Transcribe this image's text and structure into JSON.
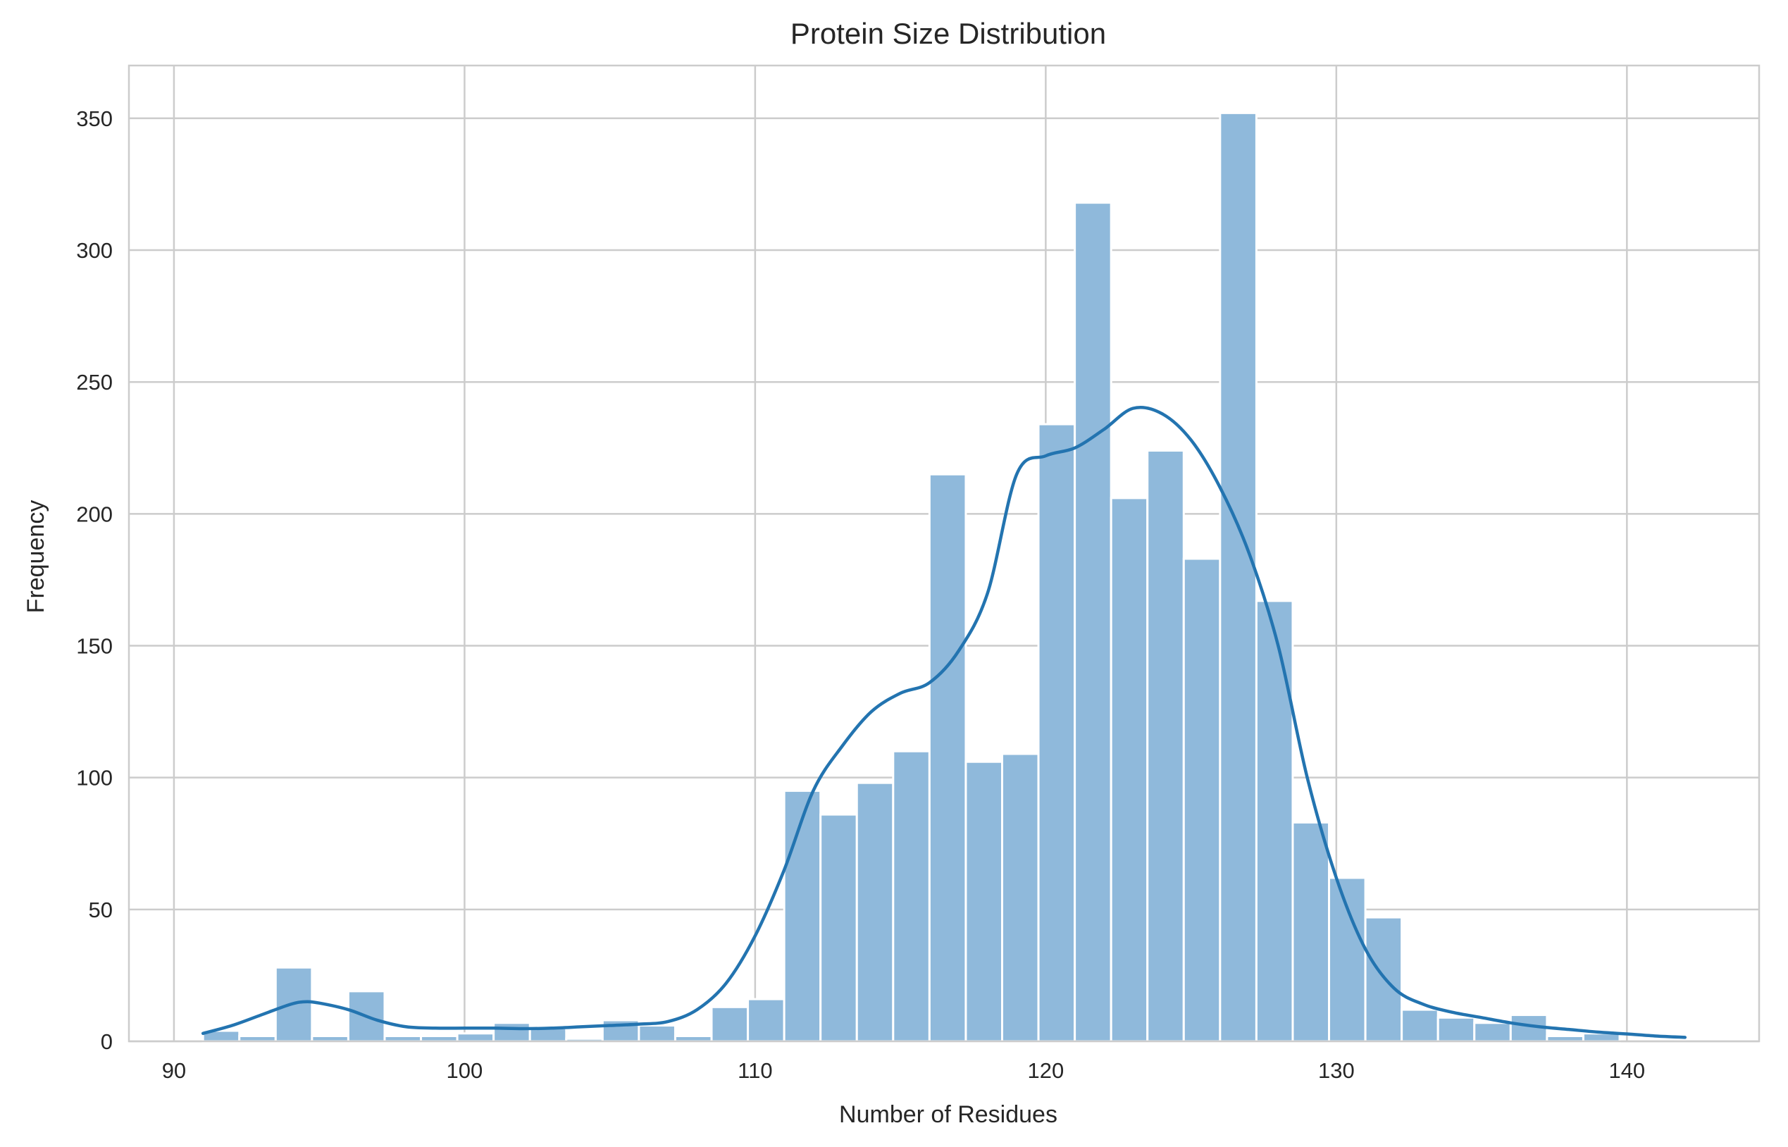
{
  "chart_data": {
    "type": "bar",
    "title": "Protein Size Distribution",
    "xlabel": "Number of Residues",
    "ylabel": "Frequency",
    "xlim": [
      88.45,
      144.55
    ],
    "ylim": [
      0,
      370
    ],
    "xticks": [
      90,
      100,
      110,
      120,
      130,
      140
    ],
    "yticks": [
      0,
      50,
      100,
      150,
      200,
      250,
      300,
      350
    ],
    "grid": true,
    "bar_color": "#8fb9db",
    "line_color": "#2374b0",
    "bin_width": 1.25,
    "bins": [
      {
        "x0": 91.0,
        "x1": 92.25,
        "value": 4
      },
      {
        "x0": 92.25,
        "x1": 93.5,
        "value": 2
      },
      {
        "x0": 93.5,
        "x1": 94.75,
        "value": 28
      },
      {
        "x0": 94.75,
        "x1": 96.0,
        "value": 2
      },
      {
        "x0": 96.0,
        "x1": 97.25,
        "value": 19
      },
      {
        "x0": 97.25,
        "x1": 98.5,
        "value": 2
      },
      {
        "x0": 98.5,
        "x1": 99.75,
        "value": 2
      },
      {
        "x0": 99.75,
        "x1": 101.0,
        "value": 3
      },
      {
        "x0": 101.0,
        "x1": 102.25,
        "value": 7
      },
      {
        "x0": 102.25,
        "x1": 103.5,
        "value": 5
      },
      {
        "x0": 103.5,
        "x1": 104.75,
        "value": 1
      },
      {
        "x0": 104.75,
        "x1": 106.0,
        "value": 8
      },
      {
        "x0": 106.0,
        "x1": 107.25,
        "value": 6
      },
      {
        "x0": 107.25,
        "x1": 108.5,
        "value": 2
      },
      {
        "x0": 108.5,
        "x1": 109.75,
        "value": 13
      },
      {
        "x0": 109.75,
        "x1": 111.0,
        "value": 16
      },
      {
        "x0": 111.0,
        "x1": 112.25,
        "value": 95
      },
      {
        "x0": 112.25,
        "x1": 113.5,
        "value": 86
      },
      {
        "x0": 113.5,
        "x1": 114.75,
        "value": 98
      },
      {
        "x0": 114.75,
        "x1": 116.0,
        "value": 110
      },
      {
        "x0": 116.0,
        "x1": 117.25,
        "value": 215
      },
      {
        "x0": 117.25,
        "x1": 118.5,
        "value": 106
      },
      {
        "x0": 118.5,
        "x1": 119.75,
        "value": 109
      },
      {
        "x0": 119.75,
        "x1": 121.0,
        "value": 234
      },
      {
        "x0": 121.0,
        "x1": 122.25,
        "value": 318
      },
      {
        "x0": 122.25,
        "x1": 123.5,
        "value": 206
      },
      {
        "x0": 123.5,
        "x1": 124.75,
        "value": 224
      },
      {
        "x0": 124.75,
        "x1": 126.0,
        "value": 183
      },
      {
        "x0": 126.0,
        "x1": 127.25,
        "value": 352
      },
      {
        "x0": 127.25,
        "x1": 128.5,
        "value": 167
      },
      {
        "x0": 128.5,
        "x1": 129.75,
        "value": 83
      },
      {
        "x0": 129.75,
        "x1": 131.0,
        "value": 62
      },
      {
        "x0": 131.0,
        "x1": 132.25,
        "value": 47
      },
      {
        "x0": 132.25,
        "x1": 133.5,
        "value": 12
      },
      {
        "x0": 133.5,
        "x1": 134.75,
        "value": 9
      },
      {
        "x0": 134.75,
        "x1": 136.0,
        "value": 7
      },
      {
        "x0": 136.0,
        "x1": 137.25,
        "value": 10
      },
      {
        "x0": 137.25,
        "x1": 138.5,
        "value": 2
      },
      {
        "x0": 138.5,
        "x1": 139.75,
        "value": 3
      }
    ],
    "kde": {
      "x": [
        91,
        92,
        93,
        94,
        94.5,
        95,
        96,
        97,
        98,
        99,
        100,
        101,
        102,
        103,
        104,
        105,
        106,
        107,
        108,
        109,
        110,
        111,
        112,
        113,
        114,
        115,
        116,
        117,
        118,
        119,
        120,
        121,
        122,
        123,
        124,
        125,
        126,
        127,
        128,
        129,
        130,
        131,
        132,
        133,
        134,
        135,
        136,
        137,
        138,
        139,
        140,
        141,
        142
      ],
      "y": [
        3,
        6,
        10,
        14,
        15,
        14.5,
        12,
        8,
        5.5,
        5,
        5,
        5,
        4.8,
        5,
        5.5,
        6,
        6.5,
        7.5,
        12,
        22,
        40,
        65,
        95,
        112,
        125,
        132,
        136,
        148,
        170,
        215,
        222,
        225,
        232,
        240,
        238,
        228,
        210,
        185,
        150,
        100,
        62,
        35,
        20,
        14,
        11,
        9,
        7,
        5.5,
        4.5,
        3.5,
        2.8,
        2,
        1.5
      ]
    }
  }
}
